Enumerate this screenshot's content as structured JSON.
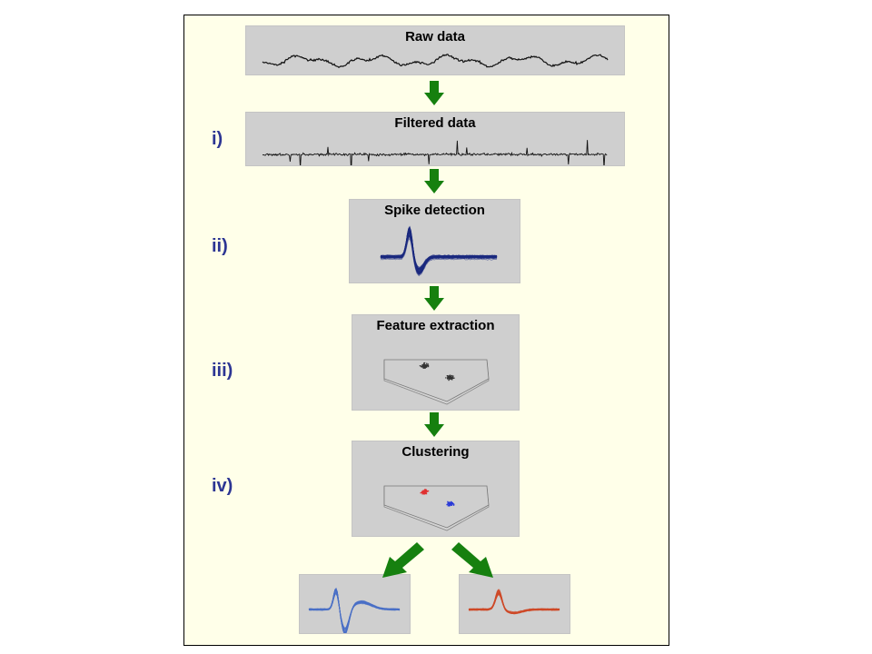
{
  "panels": {
    "raw": "Raw data",
    "filtered": "Filtered data",
    "spike": "Spike detection",
    "feature": "Feature extraction",
    "cluster": "Clustering"
  },
  "steps": [
    "i)",
    "ii)",
    "iii)",
    "iv)"
  ],
  "colors": {
    "background": "#ffffe9",
    "panel": "#cfcfcf",
    "arrow": "#16800f",
    "label": "#2c3593",
    "spikes": "#1b2a80",
    "cluster_red": "#e03030",
    "cluster_blue": "#2a3ad8",
    "unit_blue": "#4a6fc8",
    "unit_red": "#d04a28"
  }
}
